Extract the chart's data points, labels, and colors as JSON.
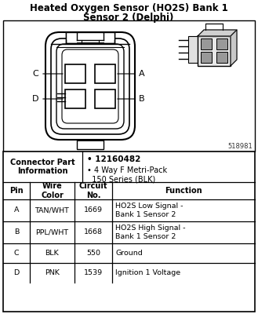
{
  "title_line1": "Heated Oxygen Sensor (HO2S) Bank 1",
  "title_line2": "Sensor 2 (Delphi)",
  "connector_part_label": "Connector Part\nInformation",
  "connector_part_info_1": "• 12160482",
  "connector_part_info_2": "• 4 Way F Metri-Pack\n  150 Series (BLK)",
  "diagram_id": "518981",
  "table_headers": [
    "Pin",
    "Wire\nColor",
    "Circuit\nNo.",
    "Function"
  ],
  "table_rows": [
    [
      "A",
      "TAN/WHT",
      "1669",
      "HO2S Low Signal -\nBank 1 Sensor 2"
    ],
    [
      "B",
      "PPL/WHT",
      "1668",
      "HO2S High Signal -\nBank 1 Sensor 2"
    ],
    [
      "C",
      "BLK",
      "550",
      "Ground"
    ],
    [
      "D",
      "PNK",
      "1539",
      "Ignition 1 Voltage"
    ]
  ],
  "bg_color": "#ffffff",
  "text_color": "#000000"
}
